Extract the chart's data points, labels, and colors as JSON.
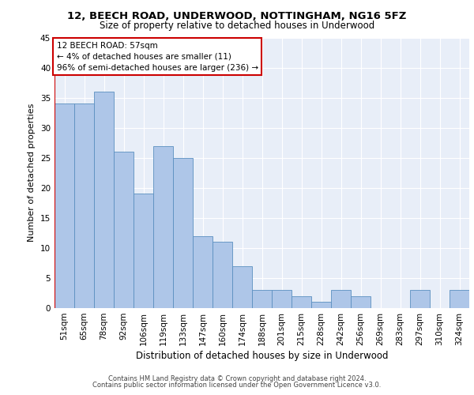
{
  "title1": "12, BEECH ROAD, UNDERWOOD, NOTTINGHAM, NG16 5FZ",
  "title2": "Size of property relative to detached houses in Underwood",
  "xlabel": "Distribution of detached houses by size in Underwood",
  "ylabel": "Number of detached properties",
  "categories": [
    "51sqm",
    "65sqm",
    "78sqm",
    "92sqm",
    "106sqm",
    "119sqm",
    "133sqm",
    "147sqm",
    "160sqm",
    "174sqm",
    "188sqm",
    "201sqm",
    "215sqm",
    "228sqm",
    "242sqm",
    "256sqm",
    "269sqm",
    "283sqm",
    "297sqm",
    "310sqm",
    "324sqm"
  ],
  "values": [
    34,
    34,
    36,
    26,
    19,
    27,
    25,
    12,
    11,
    7,
    3,
    3,
    2,
    1,
    3,
    2,
    0,
    0,
    3,
    0,
    3
  ],
  "bar_color": "#aec6e8",
  "bar_edge_color": "#5a8fc0",
  "annotation_title": "12 BEECH ROAD: 57sqm",
  "annotation_line1": "← 4% of detached houses are smaller (11)",
  "annotation_line2": "96% of semi-detached houses are larger (236) →",
  "annotation_box_color": "#ffffff",
  "annotation_box_edge": "#cc0000",
  "vline_color": "#cc0000",
  "footer1": "Contains HM Land Registry data © Crown copyright and database right 2024.",
  "footer2": "Contains public sector information licensed under the Open Government Licence v3.0.",
  "ylim": [
    0,
    45
  ],
  "yticks": [
    0,
    5,
    10,
    15,
    20,
    25,
    30,
    35,
    40,
    45
  ],
  "bg_color": "#e8eef8",
  "fig_bg_color": "#ffffff",
  "title1_fontsize": 9.5,
  "title2_fontsize": 8.5,
  "xlabel_fontsize": 8.5,
  "ylabel_fontsize": 8,
  "xtick_fontsize": 7,
  "ytick_fontsize": 7.5,
  "footer_fontsize": 6,
  "annot_fontsize": 7.5
}
